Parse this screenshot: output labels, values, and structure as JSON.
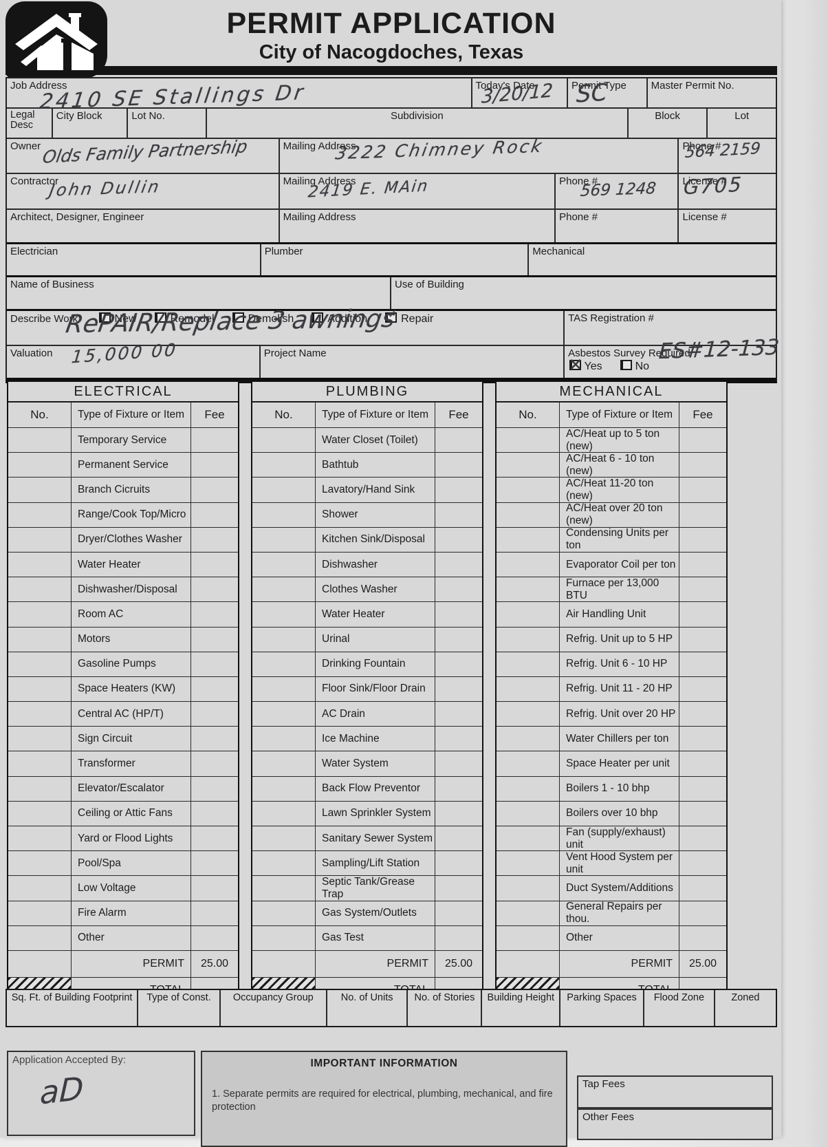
{
  "header": {
    "title": "PERMIT APPLICATION",
    "subtitle": "City of Nacogdoches, Texas"
  },
  "top_form": {
    "job_address": {
      "label": "Job Address",
      "value": "2410  SE  Stallings  Dr"
    },
    "todays_date": {
      "label": "Today's Date",
      "value": "3/20/12"
    },
    "permit_type": {
      "label": "Permit Type",
      "value": "SC"
    },
    "master_permit_no": {
      "label": "Master Permit No.",
      "value": ""
    },
    "legal_desc": {
      "label": "Legal Desc"
    },
    "city_block": {
      "label": "City Block"
    },
    "lot_no": {
      "label": "Lot No."
    },
    "subdivision": {
      "label": "Subdivision"
    },
    "block": {
      "label": "Block"
    },
    "lot": {
      "label": "Lot"
    },
    "owner": {
      "label": "Owner",
      "value": "Olds Family Partnership"
    },
    "owner_mailing": {
      "label": "Mailing Address",
      "value": "3222 Chimney Rock"
    },
    "owner_phone": {
      "label": "Phone #",
      "value": "564 2159"
    },
    "contractor": {
      "label": "Contractor",
      "value": "John Dullin"
    },
    "contractor_mailing": {
      "label": "Mailing Address",
      "value": "2419 E. MAin"
    },
    "contractor_phone": {
      "label": "Phone #",
      "value": "569 1248"
    },
    "contractor_license": {
      "label": "License #",
      "value": "G705"
    },
    "architect": {
      "label": "Architect, Designer, Engineer",
      "value": ""
    },
    "architect_mailing": {
      "label": "Mailing Address",
      "value": ""
    },
    "architect_phone": {
      "label": "Phone #",
      "value": ""
    },
    "architect_license": {
      "label": "License #",
      "value": ""
    },
    "electrician": {
      "label": "Electrician",
      "value": ""
    },
    "plumber": {
      "label": "Plumber",
      "value": ""
    },
    "mechanical": {
      "label": "Mechanical",
      "value": ""
    },
    "name_of_business": {
      "label": "Name of Business",
      "value": ""
    },
    "use_of_building": {
      "label": "Use of Building",
      "value": ""
    },
    "describe_work": {
      "label": "Describe Work",
      "value": "RePAIR/Replace 3 awnings",
      "checkboxes": [
        {
          "label": "New",
          "checked": false
        },
        {
          "label": "Remodel",
          "checked": false
        },
        {
          "label": "Demolish",
          "checked": false
        },
        {
          "label": "Addition",
          "checked": false
        },
        {
          "label": "Repair",
          "checked": true
        }
      ]
    },
    "tas_registration": {
      "label": "TAS Registration #",
      "value": ""
    },
    "valuation": {
      "label": "Valuation",
      "value": "15,000 00"
    },
    "project_name": {
      "label": "Project Name",
      "value": ""
    },
    "asbestos": {
      "label": "Asbestos Survey Required",
      "yes_label": "Yes",
      "no_label": "No",
      "yes_checked": true,
      "no_checked": false,
      "note": "ES#12-133"
    }
  },
  "fee_tables": {
    "column_headers": {
      "no": "No.",
      "type": "Type of Fixture or Item",
      "fee": "Fee"
    },
    "permit_label": "PERMIT",
    "total_label": "TOTAL",
    "tables": [
      {
        "title": "ELECTRICAL",
        "permit_fee": "25.00",
        "total_fee": "",
        "items": [
          "Temporary Service",
          "Permanent Service",
          "Branch Cicruits",
          "Range/Cook Top/Micro",
          "Dryer/Clothes Washer",
          "Water Heater",
          "Dishwasher/Disposal",
          "Room AC",
          "Motors",
          "Gasoline Pumps",
          "Space Heaters (KW)",
          "Central AC (HP/T)",
          "Sign Circuit",
          "Transformer",
          "Elevator/Escalator",
          "Ceiling or Attic Fans",
          "Yard or Flood Lights",
          "Pool/Spa",
          "Low Voltage",
          "Fire Alarm",
          "Other"
        ]
      },
      {
        "title": "PLUMBING",
        "permit_fee": "25.00",
        "total_fee": "",
        "items": [
          "Water Closet (Toilet)",
          "Bathtub",
          "Lavatory/Hand Sink",
          "Shower",
          "Kitchen Sink/Disposal",
          "Dishwasher",
          "Clothes Washer",
          "Water Heater",
          "Urinal",
          "Drinking Fountain",
          "Floor Sink/Floor Drain",
          "AC Drain",
          "Ice Machine",
          "Water System",
          "Back Flow Preventor",
          "Lawn Sprinkler System",
          "Sanitary Sewer System",
          "Sampling/Lift Station",
          "Septic Tank/Grease Trap",
          "Gas System/Outlets",
          "Gas Test"
        ]
      },
      {
        "title": "MECHANICAL",
        "permit_fee": "25.00",
        "total_fee": "",
        "items": [
          "AC/Heat up to 5 ton (new)",
          "AC/Heat 6 - 10 ton (new)",
          "AC/Heat 11-20 ton (new)",
          "AC/Heat over 20 ton (new)",
          "Condensing Units per ton",
          "Evaporator Coil per ton",
          "Furnace per 13,000 BTU",
          "Air Handling Unit",
          "Refrig. Unit up to 5 HP",
          "Refrig. Unit 6 - 10 HP",
          "Refrig. Unit 11 - 20 HP",
          "Refrig. Unit over 20 HP",
          "Water Chillers per ton",
          "Space Heater per unit",
          "Boilers 1 - 10 bhp",
          "Boilers over 10 bhp",
          "Fan (supply/exhaust) unit",
          "Vent Hood System per unit",
          "Duct System/Additions",
          "General Repairs per thou.",
          "Other"
        ]
      }
    ]
  },
  "site_info_row": {
    "cells": [
      "Sq. Ft. of Building Footprint",
      "Type of Const.",
      "Occupancy Group",
      "No. of Units",
      "No. of Stories",
      "Building Height",
      "Parking Spaces",
      "Flood Zone",
      "Zoned"
    ]
  },
  "footer": {
    "accepted_by": {
      "label": "Application Accepted By:",
      "signature": "aD"
    },
    "important_information": {
      "title": "IMPORTANT INFORMATION",
      "items": [
        "1.  Separate permits are required for electrical, plumbing, mechanical, and fire protection"
      ]
    },
    "tap_fees_label": "Tap Fees",
    "other_fees_label": "Other Fees"
  }
}
